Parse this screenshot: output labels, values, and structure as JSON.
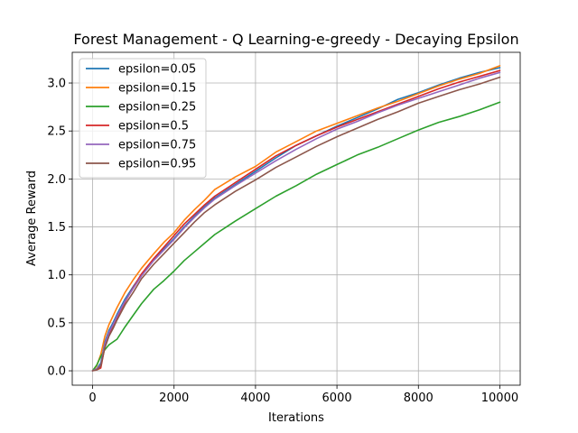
{
  "chart_data": {
    "type": "line",
    "title": "Forest Management - Q Learning-e-greedy - Decaying Epsilon",
    "xlabel": "Iterations",
    "ylabel": "Average Reward",
    "xlim": [
      -500,
      10500
    ],
    "ylim": [
      -0.15,
      3.32
    ],
    "xticks": [
      0,
      2000,
      4000,
      6000,
      8000,
      10000
    ],
    "xtick_labels": [
      "0",
      "2000",
      "4000",
      "6000",
      "8000",
      "10000"
    ],
    "yticks": [
      0.0,
      0.5,
      1.0,
      1.5,
      2.0,
      2.5,
      3.0
    ],
    "ytick_labels": [
      "0.0",
      "0.5",
      "1.0",
      "1.5",
      "2.0",
      "2.5",
      "3.0"
    ],
    "grid": true,
    "legend_position": "top-left",
    "x": [
      0,
      100,
      200,
      300,
      400,
      500,
      600,
      800,
      1000,
      1200,
      1500,
      1750,
      2000,
      2250,
      2500,
      2750,
      3000,
      3500,
      4000,
      4500,
      5000,
      5500,
      6000,
      6500,
      7000,
      7500,
      8000,
      8500,
      9000,
      9500,
      10000
    ],
    "series": [
      {
        "name": "epsilon=0.05",
        "color": "#1f77b4",
        "values": [
          0.0,
          0.02,
          0.08,
          0.3,
          0.42,
          0.5,
          0.59,
          0.75,
          0.88,
          1.0,
          1.16,
          1.27,
          1.38,
          1.5,
          1.61,
          1.71,
          1.8,
          1.94,
          2.08,
          2.22,
          2.35,
          2.45,
          2.55,
          2.64,
          2.73,
          2.83,
          2.9,
          2.98,
          3.05,
          3.11,
          3.16
        ]
      },
      {
        "name": "epsilon=0.15",
        "color": "#ff7f0e",
        "values": [
          0.0,
          0.05,
          0.17,
          0.36,
          0.48,
          0.57,
          0.66,
          0.82,
          0.95,
          1.07,
          1.22,
          1.34,
          1.44,
          1.57,
          1.68,
          1.78,
          1.89,
          2.02,
          2.13,
          2.28,
          2.39,
          2.5,
          2.58,
          2.66,
          2.74,
          2.81,
          2.89,
          2.97,
          3.04,
          3.1,
          3.18
        ]
      },
      {
        "name": "epsilon=0.25",
        "color": "#2ca02c",
        "values": [
          0.0,
          0.06,
          0.15,
          0.22,
          0.27,
          0.3,
          0.33,
          0.46,
          0.58,
          0.7,
          0.85,
          0.94,
          1.04,
          1.15,
          1.24,
          1.33,
          1.42,
          1.56,
          1.69,
          1.82,
          1.93,
          2.05,
          2.15,
          2.25,
          2.33,
          2.42,
          2.51,
          2.59,
          2.65,
          2.72,
          2.8
        ]
      },
      {
        "name": "epsilon=0.5",
        "color": "#d62728",
        "values": [
          0.0,
          0.01,
          0.03,
          0.25,
          0.38,
          0.47,
          0.56,
          0.72,
          0.87,
          1.01,
          1.17,
          1.29,
          1.41,
          1.53,
          1.63,
          1.73,
          1.82,
          1.96,
          2.1,
          2.24,
          2.35,
          2.45,
          2.54,
          2.62,
          2.7,
          2.78,
          2.86,
          2.94,
          3.01,
          3.07,
          3.13
        ]
      },
      {
        "name": "epsilon=0.75",
        "color": "#9467bd",
        "values": [
          0.0,
          0.02,
          0.06,
          0.28,
          0.4,
          0.48,
          0.57,
          0.73,
          0.86,
          0.99,
          1.15,
          1.26,
          1.37,
          1.49,
          1.6,
          1.7,
          1.79,
          1.93,
          2.06,
          2.19,
          2.31,
          2.42,
          2.52,
          2.6,
          2.69,
          2.77,
          2.84,
          2.91,
          2.98,
          3.05,
          3.11
        ]
      },
      {
        "name": "epsilon=0.95",
        "color": "#8c564b",
        "values": [
          0.0,
          0.01,
          0.05,
          0.24,
          0.36,
          0.44,
          0.53,
          0.69,
          0.82,
          0.96,
          1.11,
          1.22,
          1.33,
          1.44,
          1.55,
          1.65,
          1.73,
          1.87,
          1.99,
          2.12,
          2.23,
          2.34,
          2.44,
          2.53,
          2.62,
          2.7,
          2.79,
          2.86,
          2.93,
          2.99,
          3.06
        ]
      }
    ]
  }
}
